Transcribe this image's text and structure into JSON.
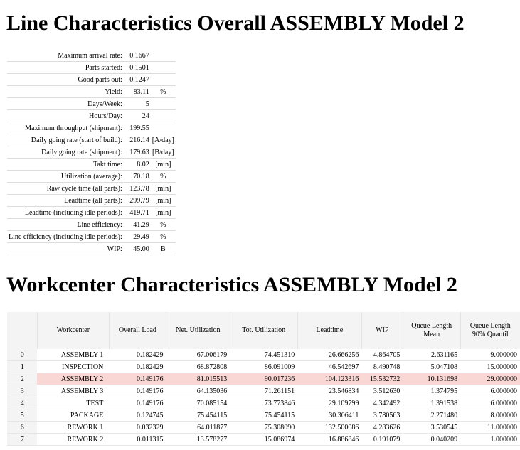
{
  "title_line": "Line Characteristics Overall ASSEMBLY Model 2",
  "title_workcenter": "Workcenter Characteristics ASSEMBLY Model 2",
  "line_rows": [
    {
      "label": "Maximum arrival rate:",
      "value": "0.1667",
      "unit": ""
    },
    {
      "label": "Parts started:",
      "value": "0.1501",
      "unit": ""
    },
    {
      "label": "Good parts out:",
      "value": "0.1247",
      "unit": ""
    },
    {
      "label": "Yield:",
      "value": "83.11",
      "unit": "%"
    },
    {
      "label": "Days/Week:",
      "value": "5",
      "unit": ""
    },
    {
      "label": "Hours/Day:",
      "value": "24",
      "unit": ""
    },
    {
      "label": "Maximum throughput (shipment):",
      "value": "199.55",
      "unit": ""
    },
    {
      "label": "Daily going rate (start of build):",
      "value": "216.14",
      "unit": "[A/day]"
    },
    {
      "label": "Daily going rate (shipment):",
      "value": "179.63",
      "unit": "[B/day]"
    },
    {
      "label": "Takt time:",
      "value": "8.02",
      "unit": "[min]"
    },
    {
      "label": "Utilization (average):",
      "value": "70.18",
      "unit": "%"
    },
    {
      "label": "Raw cycle time (all parts):",
      "value": "123.78",
      "unit": "[min]"
    },
    {
      "label": "Leadtime (all parts):",
      "value": "299.79",
      "unit": "[min]"
    },
    {
      "label": "Leadtime (including idle periods):",
      "value": "419.71",
      "unit": "[min]"
    },
    {
      "label": "Line efficiency:",
      "value": "41.29",
      "unit": "%"
    },
    {
      "label": "Line efficiency (including idle periods):",
      "value": "29.49",
      "unit": "%"
    },
    {
      "label": "WIP:",
      "value": "45.00",
      "unit": "B"
    }
  ],
  "wc_headers": [
    "",
    "Workcenter",
    "Overall Load",
    "Net. Utilization",
    "Tot. Utilization",
    "Leadtime",
    "WIP",
    "Queue Length Mean",
    "Queue Length 90% Quantil"
  ],
  "wc_rows": [
    {
      "idx": "0",
      "cells": [
        "ASSEMBLY 1",
        "0.182429",
        "67.006179",
        "74.451310",
        "26.666256",
        "4.864705",
        "2.631165",
        "9.000000"
      ],
      "highlight": false
    },
    {
      "idx": "1",
      "cells": [
        "INSPECTION",
        "0.182429",
        "68.872808",
        "86.091009",
        "46.542697",
        "8.490748",
        "5.047108",
        "15.000000"
      ],
      "highlight": false
    },
    {
      "idx": "2",
      "cells": [
        "ASSEMBLY 2",
        "0.149176",
        "81.015513",
        "90.017236",
        "104.123316",
        "15.532732",
        "10.131698",
        "29.000000"
      ],
      "highlight": true
    },
    {
      "idx": "3",
      "cells": [
        "ASSEMBLY 3",
        "0.149176",
        "64.135036",
        "71.261151",
        "23.546834",
        "3.512630",
        "1.374795",
        "6.000000"
      ],
      "highlight": false
    },
    {
      "idx": "4",
      "cells": [
        "TEST",
        "0.149176",
        "70.085154",
        "73.773846",
        "29.109799",
        "4.342492",
        "1.391538",
        "6.000000"
      ],
      "highlight": false
    },
    {
      "idx": "5",
      "cells": [
        "PACKAGE",
        "0.124745",
        "75.454115",
        "75.454115",
        "30.306411",
        "3.780563",
        "2.271480",
        "8.000000"
      ],
      "highlight": false
    },
    {
      "idx": "6",
      "cells": [
        "REWORK 1",
        "0.032329",
        "64.011877",
        "75.308090",
        "132.500086",
        "4.283626",
        "3.530545",
        "11.000000"
      ],
      "highlight": false
    },
    {
      "idx": "7",
      "cells": [
        "REWORK 2",
        "0.011315",
        "13.578277",
        "15.086974",
        "16.886846",
        "0.191079",
        "0.040209",
        "1.000000"
      ],
      "highlight": false
    }
  ],
  "colors": {
    "highlight": "#f8d7d4",
    "index_bg": "#f4f4f4"
  }
}
